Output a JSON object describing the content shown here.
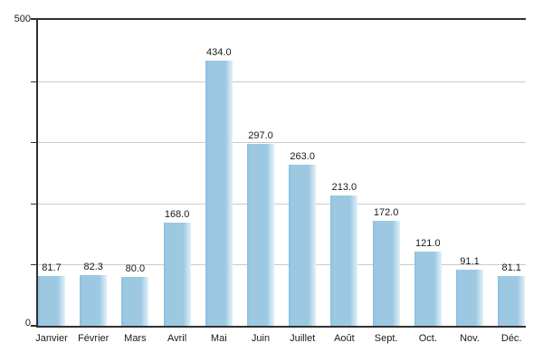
{
  "chart_data": {
    "type": "bar",
    "title": "",
    "xlabel": "",
    "ylabel": "",
    "categories": [
      "Janvier",
      "Février",
      "Mars",
      "Avril",
      "Mai",
      "Juin",
      "Juillet",
      "Août",
      "Sept.",
      "Oct.",
      "Nov.",
      "Déc."
    ],
    "values": [
      81.7,
      82.3,
      80.0,
      168.0,
      434.0,
      297.0,
      263.0,
      213.0,
      172.0,
      121.0,
      91.1,
      81.1
    ],
    "value_labels": [
      "81.7",
      "82.3",
      "80.0",
      "168.0",
      "434.0",
      "297.0",
      "263.0",
      "213.0",
      "172.0",
      "121.0",
      "91.1",
      "81.1"
    ],
    "ylim": [
      0,
      500
    ],
    "gridline_values": [
      100,
      200,
      300,
      400
    ],
    "tick_values": [
      0,
      100,
      200,
      300,
      400,
      500
    ],
    "grid": true,
    "legend_position": "none",
    "y_axis": {
      "max_label": "500",
      "zero_label": "0"
    },
    "colors": {
      "bar": "#9cc8e2",
      "bar_edge_dark": "#8abedd",
      "bar_fade": "#ddeef7",
      "grid": "#cbcbcb",
      "axis": "#303030",
      "text": "#1a1a1a",
      "background": "#ffffff"
    }
  }
}
